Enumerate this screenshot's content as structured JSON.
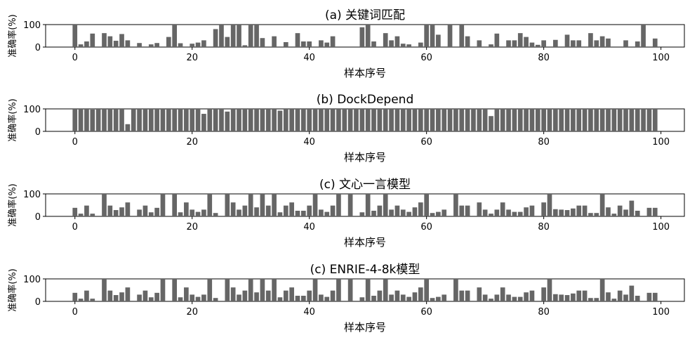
{
  "figure": {
    "xlabel": "样本序号",
    "ylabel": "准确率(%)",
    "bar_color": "#666666"
  },
  "chart_data": [
    {
      "type": "bar",
      "title": "(a) 关键词匹配",
      "xlabel": "样本序号",
      "ylabel": "准确率(%)",
      "xticks": [
        0,
        20,
        40,
        60,
        80,
        100
      ],
      "yticks": [
        0,
        100
      ],
      "xlim": [
        -5,
        104
      ],
      "ylim": [
        0,
        100
      ],
      "x": [
        0,
        1,
        2,
        3,
        4,
        5,
        6,
        7,
        8,
        9,
        10,
        11,
        12,
        13,
        14,
        15,
        16,
        17,
        18,
        19,
        20,
        21,
        22,
        23,
        24,
        25,
        26,
        27,
        28,
        29,
        30,
        31,
        32,
        33,
        34,
        35,
        36,
        37,
        38,
        39,
        40,
        41,
        42,
        43,
        44,
        45,
        46,
        47,
        48,
        49,
        50,
        51,
        52,
        53,
        54,
        55,
        56,
        57,
        58,
        59,
        60,
        61,
        62,
        63,
        64,
        65,
        66,
        67,
        68,
        69,
        70,
        71,
        72,
        73,
        74,
        75,
        76,
        77,
        78,
        79,
        80,
        81,
        82,
        83,
        84,
        85,
        86,
        87,
        88,
        89,
        90,
        91,
        92,
        93,
        94,
        95,
        96,
        97,
        98,
        99
      ],
      "values": [
        100,
        12,
        25,
        60,
        0,
        62,
        48,
        28,
        58,
        30,
        0,
        18,
        0,
        12,
        18,
        0,
        45,
        100,
        17,
        0,
        15,
        20,
        30,
        0,
        80,
        100,
        45,
        100,
        100,
        8,
        100,
        100,
        40,
        0,
        48,
        0,
        22,
        0,
        62,
        25,
        25,
        0,
        30,
        20,
        48,
        0,
        0,
        0,
        0,
        88,
        100,
        25,
        0,
        62,
        30,
        48,
        15,
        12,
        0,
        20,
        100,
        100,
        55,
        0,
        100,
        0,
        100,
        48,
        0,
        30,
        0,
        12,
        60,
        0,
        30,
        30,
        62,
        45,
        20,
        10,
        30,
        0,
        32,
        0,
        55,
        30,
        30,
        0,
        62,
        30,
        48,
        38,
        0,
        0,
        30,
        0,
        25,
        100,
        0,
        38
      ]
    },
    {
      "type": "bar",
      "title": "(b) DockDepend",
      "xlabel": "样本序号",
      "ylabel": "准确率(%)",
      "xticks": [
        0,
        20,
        40,
        60,
        80,
        100
      ],
      "yticks": [
        0,
        100
      ],
      "xlim": [
        -5,
        104
      ],
      "ylim": [
        0,
        100
      ],
      "x": [
        0,
        1,
        2,
        3,
        4,
        5,
        6,
        7,
        8,
        9,
        10,
        11,
        12,
        13,
        14,
        15,
        16,
        17,
        18,
        19,
        20,
        21,
        22,
        23,
        24,
        25,
        26,
        27,
        28,
        29,
        30,
        31,
        32,
        33,
        34,
        35,
        36,
        37,
        38,
        39,
        40,
        41,
        42,
        43,
        44,
        45,
        46,
        47,
        48,
        49,
        50,
        51,
        52,
        53,
        54,
        55,
        56,
        57,
        58,
        59,
        60,
        61,
        62,
        63,
        64,
        65,
        66,
        67,
        68,
        69,
        70,
        71,
        72,
        73,
        74,
        75,
        76,
        77,
        78,
        79,
        80,
        81,
        82,
        83,
        84,
        85,
        86,
        87,
        88,
        89,
        90,
        91,
        92,
        93,
        94,
        95,
        96,
        97,
        98,
        99
      ],
      "values": [
        100,
        100,
        100,
        97,
        100,
        100,
        100,
        100,
        100,
        32,
        100,
        100,
        100,
        100,
        100,
        100,
        100,
        100,
        100,
        100,
        100,
        100,
        78,
        100,
        100,
        100,
        88,
        100,
        100,
        100,
        100,
        100,
        100,
        100,
        100,
        92,
        100,
        100,
        100,
        100,
        100,
        100,
        100,
        100,
        100,
        100,
        100,
        100,
        100,
        100,
        100,
        100,
        100,
        100,
        100,
        100,
        100,
        100,
        100,
        100,
        100,
        100,
        100,
        100,
        100,
        100,
        100,
        100,
        100,
        100,
        100,
        68,
        100,
        100,
        100,
        100,
        100,
        100,
        100,
        100,
        100,
        100,
        100,
        100,
        100,
        100,
        100,
        100,
        100,
        100,
        100,
        100,
        100,
        100,
        100,
        100,
        100,
        100,
        100,
        100
      ]
    },
    {
      "type": "bar",
      "title": "(c) 文心一言模型",
      "xlabel": "样本序号",
      "ylabel": "准确率(%)",
      "xticks": [
        0,
        20,
        40,
        60,
        80,
        100
      ],
      "yticks": [
        0,
        100
      ],
      "xlim": [
        -5,
        104
      ],
      "ylim": [
        0,
        100
      ],
      "x": [
        0,
        1,
        2,
        3,
        4,
        5,
        6,
        7,
        8,
        9,
        10,
        11,
        12,
        13,
        14,
        15,
        16,
        17,
        18,
        19,
        20,
        21,
        22,
        23,
        24,
        25,
        26,
        27,
        28,
        29,
        30,
        31,
        32,
        33,
        34,
        35,
        36,
        37,
        38,
        39,
        40,
        41,
        42,
        43,
        44,
        45,
        46,
        47,
        48,
        49,
        50,
        51,
        52,
        53,
        54,
        55,
        56,
        57,
        58,
        59,
        60,
        61,
        62,
        63,
        64,
        65,
        66,
        67,
        68,
        69,
        70,
        71,
        72,
        73,
        74,
        75,
        76,
        77,
        78,
        79,
        80,
        81,
        82,
        83,
        84,
        85,
        86,
        87,
        88,
        89,
        90,
        91,
        92,
        93,
        94,
        95,
        96,
        97,
        98,
        99
      ],
      "values": [
        38,
        12,
        48,
        12,
        0,
        100,
        48,
        28,
        40,
        62,
        0,
        30,
        48,
        18,
        38,
        100,
        0,
        100,
        18,
        62,
        30,
        20,
        30,
        100,
        15,
        0,
        100,
        62,
        30,
        48,
        100,
        40,
        100,
        48,
        100,
        18,
        48,
        62,
        25,
        25,
        48,
        100,
        30,
        20,
        48,
        100,
        0,
        100,
        0,
        18,
        100,
        25,
        48,
        100,
        30,
        48,
        30,
        20,
        40,
        62,
        100,
        15,
        20,
        30,
        0,
        100,
        48,
        48,
        0,
        62,
        30,
        12,
        30,
        62,
        30,
        20,
        20,
        40,
        48,
        0,
        62,
        100,
        32,
        30,
        28,
        35,
        48,
        48,
        15,
        15,
        100,
        40,
        12,
        48,
        30,
        70,
        25,
        0,
        38,
        38
      ]
    },
    {
      "type": "bar",
      "title": "(c) ENRIE-4-8k模型",
      "xlabel": "样本序号",
      "ylabel": "准确率(%)",
      "xticks": [
        0,
        20,
        40,
        60,
        80,
        100
      ],
      "yticks": [
        0,
        100
      ],
      "xlim": [
        -5,
        104
      ],
      "ylim": [
        0,
        100
      ],
      "x": [
        0,
        1,
        2,
        3,
        4,
        5,
        6,
        7,
        8,
        9,
        10,
        11,
        12,
        13,
        14,
        15,
        16,
        17,
        18,
        19,
        20,
        21,
        22,
        23,
        24,
        25,
        26,
        27,
        28,
        29,
        30,
        31,
        32,
        33,
        34,
        35,
        36,
        37,
        38,
        39,
        40,
        41,
        42,
        43,
        44,
        45,
        46,
        47,
        48,
        49,
        50,
        51,
        52,
        53,
        54,
        55,
        56,
        57,
        58,
        59,
        60,
        61,
        62,
        63,
        64,
        65,
        66,
        67,
        68,
        69,
        70,
        71,
        72,
        73,
        74,
        75,
        76,
        77,
        78,
        79,
        80,
        81,
        82,
        83,
        84,
        85,
        86,
        87,
        88,
        89,
        90,
        91,
        92,
        93,
        94,
        95,
        96,
        97,
        98,
        99
      ],
      "values": [
        38,
        12,
        48,
        12,
        0,
        100,
        48,
        28,
        40,
        62,
        0,
        30,
        48,
        18,
        38,
        100,
        0,
        100,
        18,
        62,
        30,
        20,
        30,
        100,
        15,
        0,
        100,
        62,
        30,
        48,
        100,
        40,
        100,
        48,
        100,
        18,
        48,
        62,
        25,
        25,
        48,
        100,
        30,
        20,
        48,
        100,
        0,
        100,
        0,
        18,
        100,
        25,
        48,
        100,
        30,
        48,
        30,
        20,
        40,
        62,
        100,
        15,
        20,
        30,
        0,
        100,
        48,
        48,
        0,
        62,
        30,
        12,
        30,
        62,
        30,
        20,
        20,
        40,
        48,
        0,
        62,
        100,
        32,
        30,
        28,
        35,
        48,
        48,
        15,
        15,
        100,
        40,
        12,
        48,
        30,
        70,
        25,
        0,
        38,
        38
      ]
    }
  ]
}
